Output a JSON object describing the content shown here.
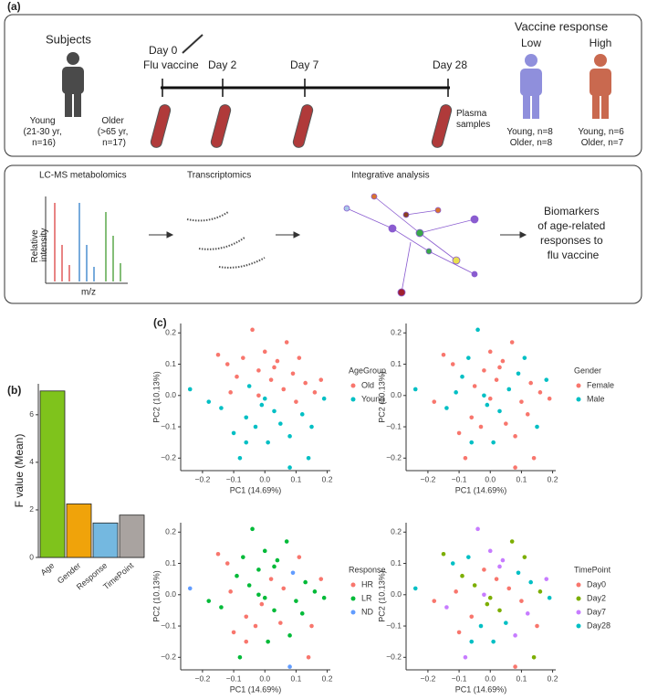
{
  "panels": [
    "(a)",
    "(b)",
    "(c)"
  ],
  "design": {
    "subjects": "Subjects",
    "young": [
      "Young",
      "(21-30 yr,",
      "n=16)"
    ],
    "older": [
      "Older",
      "(>65 yr,",
      "n=17)"
    ],
    "day0": "Day 0",
    "flu_vaccine": "Flu vaccine",
    "day2": "Day 2",
    "day7": "Day 7",
    "day28": "Day 28",
    "plasma": [
      "Plasma",
      "samples"
    ],
    "vaccine_response": "Vaccine response",
    "low": "Low",
    "high": "High",
    "low_counts": [
      "Young, n=8",
      "Older, n=8"
    ],
    "high_counts": [
      "Young, n=6",
      "Older, n=7"
    ]
  },
  "workflow": {
    "lcms": "LC-MS metabolomics",
    "transcriptomics": "Transcriptomics",
    "integrative": "Integrative analysis",
    "intensity": [
      "Relative",
      "intensity"
    ],
    "mz": "m/z",
    "biomarkers": [
      "Biomarkers",
      "of age-related",
      "responses to",
      "flu vaccine"
    ]
  },
  "chart_data": [
    {
      "type": "bar",
      "categories": [
        "Age",
        "Gender",
        "Response",
        "TimePoint"
      ],
      "values": [
        7.0,
        2.25,
        1.45,
        1.78
      ],
      "colors": [
        "#7fc31c",
        "#f0a30a",
        "#74b8e0",
        "#a9a3a0"
      ],
      "y_label": "F value (Mean)",
      "ylim": [
        0,
        7.3
      ],
      "yticks": [
        0,
        2,
        4,
        6
      ]
    },
    {
      "type": "scatter",
      "x_label": "PC1 (14.69%)",
      "y_label": "PC2 (10.13%)",
      "legend_title": "AgeGroup",
      "series": [
        {
          "name": "Old",
          "color": "#f8766d"
        },
        {
          "name": "Young",
          "color": "#00bfc4"
        }
      ],
      "x": [
        -0.24,
        -0.18,
        -0.15,
        -0.14,
        -0.12,
        -0.1,
        -0.09,
        -0.08,
        -0.07,
        -0.06,
        -0.05,
        -0.04,
        -0.03,
        -0.02,
        -0.01,
        0,
        0.01,
        0.02,
        0.03,
        0.04,
        0.05,
        0.06,
        0.07,
        0.08,
        0.09,
        0.1,
        0.11,
        0.12,
        0.13,
        0.15,
        0.16,
        0.18,
        0.19,
        -0.11,
        0,
        0.03,
        -0.06,
        0.08,
        0.14,
        -0.02
      ],
      "y": [
        0.02,
        -0.02,
        0.13,
        -0.04,
        0.1,
        -0.12,
        0.06,
        -0.2,
        0.12,
        -0.07,
        0.03,
        0.21,
        -0.1,
        0.08,
        -0.03,
        0.14,
        -0.15,
        0.05,
        -0.05,
        0.11,
        -0.09,
        0.02,
        0.17,
        -0.13,
        0.07,
        -0.02,
        0.12,
        -0.06,
        0.04,
        -0.1,
        0.01,
        0.05,
        -0.01,
        0.01,
        -0.01,
        0.09,
        -0.15,
        -0.23,
        -0.2,
        0
      ],
      "group": [
        1,
        1,
        0,
        1,
        0,
        1,
        0,
        1,
        0,
        1,
        1,
        0,
        1,
        0,
        1,
        0,
        1,
        0,
        1,
        0,
        1,
        0,
        0,
        1,
        0,
        0,
        0,
        1,
        0,
        1,
        0,
        0,
        1,
        0,
        1,
        0,
        1,
        1,
        1,
        0
      ],
      "xlim": [
        -0.27,
        0.21
      ],
      "ylim": [
        -0.24,
        0.23
      ],
      "xticks": [
        {
          "value": -0.2,
          "label": "−0.2"
        },
        {
          "value": -0.1,
          "label": "−0.1"
        },
        {
          "value": 0,
          "label": "0.0"
        },
        0.1,
        0.2
      ],
      "yticks": [
        {
          "value": -0.2,
          "label": "−0.2"
        },
        {
          "value": -0.1,
          "label": "−0.1"
        },
        {
          "value": 0,
          "label": "0.0"
        },
        0.1,
        0.2
      ]
    },
    {
      "type": "scatter",
      "x_label": "PC1 (14.69%)",
      "y_label": "PC2 (10.13%)",
      "legend_title": "Gender",
      "series": [
        {
          "name": "Female",
          "color": "#f8766d"
        },
        {
          "name": "Male",
          "color": "#00bfc4"
        }
      ],
      "x": [
        -0.24,
        -0.18,
        -0.15,
        -0.14,
        -0.12,
        -0.1,
        -0.09,
        -0.08,
        -0.07,
        -0.06,
        -0.05,
        -0.04,
        -0.03,
        -0.02,
        -0.01,
        0,
        0.01,
        0.02,
        0.03,
        0.04,
        0.05,
        0.06,
        0.07,
        0.08,
        0.09,
        0.1,
        0.11,
        0.12,
        0.13,
        0.15,
        0.16,
        0.18,
        0.19,
        -0.11,
        0,
        0.03,
        -0.06,
        0.08,
        0.14,
        -0.02
      ],
      "y": [
        0.02,
        -0.02,
        0.13,
        -0.04,
        0.1,
        -0.12,
        0.06,
        -0.2,
        0.12,
        -0.07,
        0.03,
        0.21,
        -0.1,
        0.08,
        -0.03,
        0.14,
        -0.15,
        0.05,
        -0.05,
        0.11,
        -0.09,
        0.02,
        0.17,
        -0.13,
        0.07,
        -0.02,
        0.12,
        -0.06,
        0.04,
        -0.1,
        0.01,
        0.05,
        -0.01,
        0.01,
        -0.01,
        0.09,
        -0.15,
        -0.23,
        -0.2,
        0
      ],
      "group": [
        1,
        0,
        0,
        1,
        0,
        0,
        1,
        0,
        1,
        0,
        0,
        1,
        0,
        0,
        1,
        0,
        1,
        0,
        1,
        0,
        0,
        1,
        0,
        0,
        1,
        0,
        1,
        0,
        0,
        1,
        0,
        1,
        0,
        1,
        0,
        0,
        1,
        0,
        0,
        1
      ],
      "xlim": [
        -0.27,
        0.21
      ],
      "ylim": [
        -0.24,
        0.23
      ],
      "xticks": [
        {
          "value": -0.2,
          "label": "−0.2"
        },
        {
          "value": -0.1,
          "label": "−0.1"
        },
        {
          "value": 0,
          "label": "0.0"
        },
        0.1,
        0.2
      ],
      "yticks": [
        {
          "value": -0.2,
          "label": "−0.2"
        },
        {
          "value": -0.1,
          "label": "−0.1"
        },
        {
          "value": 0,
          "label": "0.0"
        },
        0.1,
        0.2
      ]
    },
    {
      "type": "scatter",
      "x_label": "PC1 (14.69%)",
      "y_label": "PC2 (10.13%)",
      "legend_title": "Response",
      "series": [
        {
          "name": "HR",
          "color": "#f8766d"
        },
        {
          "name": "LR",
          "color": "#00ba38"
        },
        {
          "name": "ND",
          "color": "#619cff"
        }
      ],
      "x": [
        -0.24,
        -0.18,
        -0.15,
        -0.14,
        -0.12,
        -0.1,
        -0.09,
        -0.08,
        -0.07,
        -0.06,
        -0.05,
        -0.04,
        -0.03,
        -0.02,
        -0.01,
        0,
        0.01,
        0.02,
        0.03,
        0.04,
        0.05,
        0.06,
        0.07,
        0.08,
        0.09,
        0.1,
        0.11,
        0.12,
        0.13,
        0.15,
        0.16,
        0.18,
        0.19,
        -0.11,
        0,
        0.03,
        -0.06,
        0.08,
        0.14,
        -0.02
      ],
      "y": [
        0.02,
        -0.02,
        0.13,
        -0.04,
        0.1,
        -0.12,
        0.06,
        -0.2,
        0.12,
        -0.07,
        0.03,
        0.21,
        -0.1,
        0.08,
        -0.03,
        0.14,
        -0.15,
        0.05,
        -0.05,
        0.11,
        -0.09,
        0.02,
        0.17,
        -0.13,
        0.07,
        -0.02,
        0.12,
        -0.06,
        0.04,
        -0.1,
        0.01,
        0.05,
        -0.01,
        0.01,
        -0.01,
        0.09,
        -0.15,
        -0.23,
        -0.2,
        0
      ],
      "group": [
        2,
        1,
        0,
        1,
        0,
        0,
        1,
        1,
        1,
        0,
        1,
        1,
        0,
        1,
        0,
        1,
        1,
        0,
        1,
        1,
        0,
        0,
        1,
        1,
        2,
        1,
        0,
        1,
        1,
        0,
        1,
        0,
        1,
        0,
        1,
        1,
        0,
        2,
        0,
        1
      ],
      "xlim": [
        -0.27,
        0.21
      ],
      "ylim": [
        -0.24,
        0.23
      ],
      "xticks": [
        {
          "value": -0.2,
          "label": "−0.2"
        },
        {
          "value": -0.1,
          "label": "−0.1"
        },
        {
          "value": 0,
          "label": "0.0"
        },
        0.1,
        0.2
      ],
      "yticks": [
        {
          "value": -0.2,
          "label": "−0.2"
        },
        {
          "value": -0.1,
          "label": "−0.1"
        },
        {
          "value": 0,
          "label": "0.0"
        },
        0.1,
        0.2
      ]
    },
    {
      "type": "scatter",
      "x_label": "PC1 (14.69%)",
      "y_label": "PC2 (10.13%)",
      "legend_title": "TimePoint",
      "series": [
        {
          "name": "Day0",
          "color": "#f8766d"
        },
        {
          "name": "Day2",
          "color": "#7cae00"
        },
        {
          "name": "Day7",
          "color": "#c77cff"
        },
        {
          "name": "Day28",
          "color": "#00bfc4"
        }
      ],
      "x": [
        -0.24,
        -0.18,
        -0.15,
        -0.14,
        -0.12,
        -0.1,
        -0.09,
        -0.08,
        -0.07,
        -0.06,
        -0.05,
        -0.04,
        -0.03,
        -0.02,
        -0.01,
        0,
        0.01,
        0.02,
        0.03,
        0.04,
        0.05,
        0.06,
        0.07,
        0.08,
        0.09,
        0.1,
        0.11,
        0.12,
        0.13,
        0.15,
        0.16,
        0.18,
        0.19,
        -0.11,
        0,
        0.03,
        -0.06,
        0.08,
        0.14,
        -0.02
      ],
      "y": [
        0.02,
        -0.02,
        0.13,
        -0.04,
        0.1,
        -0.12,
        0.06,
        -0.2,
        0.12,
        -0.07,
        0.03,
        0.21,
        -0.1,
        0.08,
        -0.03,
        0.14,
        -0.15,
        0.05,
        -0.05,
        0.11,
        -0.09,
        0.02,
        0.17,
        -0.13,
        0.07,
        -0.02,
        0.12,
        -0.06,
        0.04,
        -0.1,
        0.01,
        0.05,
        -0.01,
        0.01,
        -0.01,
        0.09,
        -0.15,
        -0.23,
        -0.2,
        0
      ],
      "group": [
        3,
        0,
        1,
        2,
        3,
        0,
        1,
        2,
        3,
        0,
        1,
        2,
        3,
        0,
        1,
        2,
        3,
        0,
        1,
        2,
        3,
        0,
        1,
        2,
        3,
        0,
        1,
        2,
        3,
        0,
        1,
        2,
        3,
        0,
        1,
        2,
        3,
        0,
        1,
        2
      ],
      "xlim": [
        -0.27,
        0.21
      ],
      "ylim": [
        -0.24,
        0.23
      ],
      "xticks": [
        {
          "value": -0.2,
          "label": "−0.2"
        },
        {
          "value": -0.1,
          "label": "−0.1"
        },
        {
          "value": 0,
          "label": "0.0"
        },
        0.1,
        0.2
      ],
      "yticks": [
        {
          "value": -0.2,
          "label": "−0.2"
        },
        {
          "value": -0.1,
          "label": "−0.1"
        },
        {
          "value": 0,
          "label": "0.0"
        },
        0.1,
        0.2
      ]
    }
  ]
}
